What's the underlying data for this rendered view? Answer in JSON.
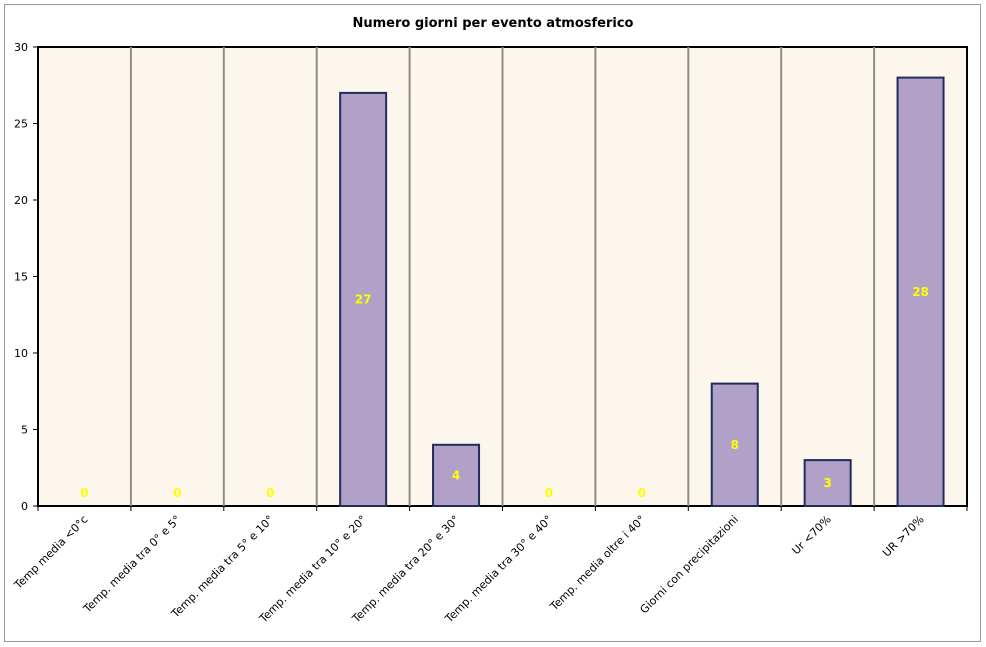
{
  "chart_data": {
    "type": "bar",
    "title": "Numero giorni per evento atmosferico",
    "xlabel": "",
    "ylabel": "",
    "ylim": [
      0,
      30
    ],
    "yticks": [
      0,
      5,
      10,
      15,
      20,
      25,
      30
    ],
    "categories": [
      "Temp media <0°c",
      "Temp. media tra 0° e 5°",
      "Temp. media tra 5° e 10°",
      "Temp. media tra 10° e 20°",
      "Temp. media tra 20° e 30°",
      "Temp. media tra 30° e 40°",
      "Temp. media oltre i 40°",
      "Giorni con precipitazioni",
      "Ur <70%",
      "UR >70%"
    ],
    "values": [
      0,
      0,
      0,
      27,
      4,
      0,
      0,
      8,
      3,
      28
    ],
    "grid": "vertical",
    "colors": {
      "bar_fill": "#b1a0c7",
      "bar_stroke": "#1f2d5a",
      "plot_bg": "#fcf6ec",
      "data_label": "#ffff00",
      "gridline": "#8c8c8c"
    }
  }
}
